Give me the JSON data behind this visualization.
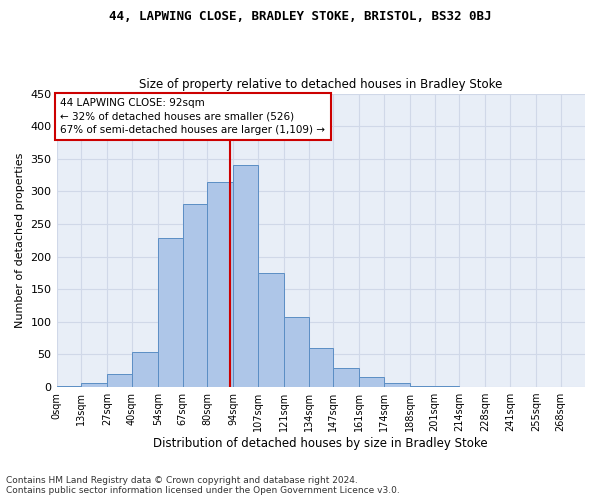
{
  "title": "44, LAPWING CLOSE, BRADLEY STOKE, BRISTOL, BS32 0BJ",
  "subtitle": "Size of property relative to detached houses in Bradley Stoke",
  "xlabel": "Distribution of detached houses by size in Bradley Stoke",
  "ylabel": "Number of detached properties",
  "footnote1": "Contains HM Land Registry data © Crown copyright and database right 2024.",
  "footnote2": "Contains public sector information licensed under the Open Government Licence v3.0.",
  "annotation_title": "44 LAPWING CLOSE: 92sqm",
  "annotation_line1": "← 32% of detached houses are smaller (526)",
  "annotation_line2": "67% of semi-detached houses are larger (1,109) →",
  "property_line_x": 92,
  "bar_labels": [
    "0sqm",
    "13sqm",
    "27sqm",
    "40sqm",
    "54sqm",
    "67sqm",
    "80sqm",
    "94sqm",
    "107sqm",
    "121sqm",
    "134sqm",
    "147sqm",
    "161sqm",
    "174sqm",
    "188sqm",
    "201sqm",
    "214sqm",
    "228sqm",
    "241sqm",
    "255sqm",
    "268sqm"
  ],
  "bar_left_edges": [
    0,
    13,
    27,
    40,
    54,
    67,
    80,
    94,
    107,
    121,
    134,
    147,
    161,
    174,
    188,
    201,
    214,
    228,
    241,
    255,
    268
  ],
  "bar_widths": [
    13,
    14,
    13,
    14,
    13,
    13,
    14,
    13,
    14,
    13,
    13,
    14,
    13,
    14,
    13,
    13,
    14,
    13,
    14,
    13,
    13
  ],
  "bar_heights": [
    2,
    6,
    20,
    54,
    228,
    280,
    315,
    340,
    175,
    108,
    60,
    30,
    16,
    7,
    2,
    2,
    0,
    0,
    0,
    0,
    0
  ],
  "bar_color": "#aec6e8",
  "bar_edge_color": "#5b8ec4",
  "vline_color": "#cc0000",
  "annotation_box_color": "#cc0000",
  "background_color": "#e8eef7",
  "grid_color": "#d0d8e8",
  "ylim": [
    0,
    450
  ],
  "yticks": [
    0,
    50,
    100,
    150,
    200,
    250,
    300,
    350,
    400,
    450
  ],
  "xlim_min": 0,
  "xlim_max": 281
}
